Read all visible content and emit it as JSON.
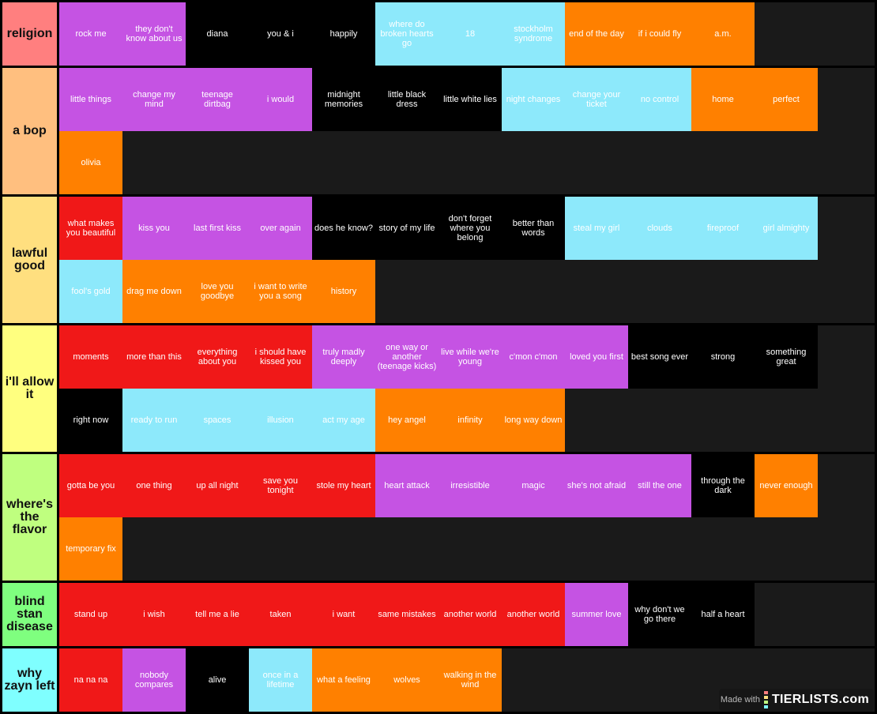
{
  "colors": {
    "red": "#f01818",
    "purple": "#c553e3",
    "black": "#000000",
    "cyan": "#8de9fb",
    "orange": "#ff8000"
  },
  "tiers": [
    {
      "label": "religion",
      "color": "#ff7f7f",
      "items": [
        {
          "t": "rock me",
          "c": "purple"
        },
        {
          "t": "they don't know about us",
          "c": "purple"
        },
        {
          "t": "diana",
          "c": "black"
        },
        {
          "t": "you & i",
          "c": "black"
        },
        {
          "t": "happily",
          "c": "black"
        },
        {
          "t": "where do broken hearts go",
          "c": "cyan"
        },
        {
          "t": "18",
          "c": "cyan"
        },
        {
          "t": "stockholm syndrome",
          "c": "cyan"
        },
        {
          "t": "end of the day",
          "c": "orange"
        },
        {
          "t": "if i could fly",
          "c": "orange"
        },
        {
          "t": "a.m.",
          "c": "orange"
        }
      ]
    },
    {
      "label": "a bop",
      "color": "#ffbf7f",
      "items": [
        {
          "t": "little things",
          "c": "purple"
        },
        {
          "t": "change my mind",
          "c": "purple"
        },
        {
          "t": "teenage dirtbag",
          "c": "purple"
        },
        {
          "t": "i would",
          "c": "purple"
        },
        {
          "t": "midnight memories",
          "c": "black"
        },
        {
          "t": "little black dress",
          "c": "black"
        },
        {
          "t": "little white lies",
          "c": "black"
        },
        {
          "t": "night changes",
          "c": "cyan"
        },
        {
          "t": "change your ticket",
          "c": "cyan"
        },
        {
          "t": "no control",
          "c": "cyan"
        },
        {
          "t": "home",
          "c": "orange"
        },
        {
          "t": "perfect",
          "c": "orange"
        },
        {
          "t": "olivia",
          "c": "orange"
        }
      ]
    },
    {
      "label": "lawful good",
      "color": "#ffdf7f",
      "items": [
        {
          "t": "what makes you beautiful",
          "c": "red"
        },
        {
          "t": "kiss you",
          "c": "purple"
        },
        {
          "t": "last first kiss",
          "c": "purple"
        },
        {
          "t": "over again",
          "c": "purple"
        },
        {
          "t": "does he know?",
          "c": "black"
        },
        {
          "t": "story of my life",
          "c": "black"
        },
        {
          "t": "don't forget where you belong",
          "c": "black"
        },
        {
          "t": "better than words",
          "c": "black"
        },
        {
          "t": "steal my girl",
          "c": "cyan"
        },
        {
          "t": "clouds",
          "c": "cyan"
        },
        {
          "t": "fireproof",
          "c": "cyan"
        },
        {
          "t": "girl almighty",
          "c": "cyan"
        },
        {
          "t": "fool's gold",
          "c": "cyan"
        },
        {
          "t": "drag me down",
          "c": "orange"
        },
        {
          "t": "love you goodbye",
          "c": "orange"
        },
        {
          "t": "i want to write you a song",
          "c": "orange"
        },
        {
          "t": "history",
          "c": "orange"
        }
      ]
    },
    {
      "label": "i'll allow it",
      "color": "#ffff7f",
      "items": [
        {
          "t": "moments",
          "c": "red"
        },
        {
          "t": "more than this",
          "c": "red"
        },
        {
          "t": "everything about you",
          "c": "red"
        },
        {
          "t": "i should have kissed you",
          "c": "red"
        },
        {
          "t": "truly madly deeply",
          "c": "purple"
        },
        {
          "t": "one way or another (teenage kicks)",
          "c": "purple"
        },
        {
          "t": "live while we're young",
          "c": "purple"
        },
        {
          "t": "c'mon c'mon",
          "c": "purple"
        },
        {
          "t": "loved you first",
          "c": "purple"
        },
        {
          "t": "best song ever",
          "c": "black"
        },
        {
          "t": "strong",
          "c": "black"
        },
        {
          "t": "something great",
          "c": "black"
        },
        {
          "t": "right now",
          "c": "black"
        },
        {
          "t": "ready to run",
          "c": "cyan"
        },
        {
          "t": "spaces",
          "c": "cyan"
        },
        {
          "t": "illusion",
          "c": "cyan"
        },
        {
          "t": "act my age",
          "c": "cyan"
        },
        {
          "t": "hey angel",
          "c": "orange"
        },
        {
          "t": "infinity",
          "c": "orange"
        },
        {
          "t": "long way down",
          "c": "orange"
        }
      ]
    },
    {
      "label": "where's the flavor",
      "color": "#bfff7f",
      "items": [
        {
          "t": "gotta be you",
          "c": "red"
        },
        {
          "t": "one thing",
          "c": "red"
        },
        {
          "t": "up all night",
          "c": "red"
        },
        {
          "t": "save you tonight",
          "c": "red"
        },
        {
          "t": "stole my heart",
          "c": "red"
        },
        {
          "t": "heart attack",
          "c": "purple"
        },
        {
          "t": "irresistible",
          "c": "purple"
        },
        {
          "t": "magic",
          "c": "purple"
        },
        {
          "t": "she's not afraid",
          "c": "purple"
        },
        {
          "t": "still the one",
          "c": "purple"
        },
        {
          "t": "through the dark",
          "c": "black"
        },
        {
          "t": "never enough",
          "c": "orange"
        },
        {
          "t": "temporary fix",
          "c": "orange"
        }
      ]
    },
    {
      "label": "blind stan disease",
      "color": "#7fff7f",
      "items": [
        {
          "t": "stand up",
          "c": "red"
        },
        {
          "t": "i wish",
          "c": "red"
        },
        {
          "t": "tell me a lie",
          "c": "red"
        },
        {
          "t": "taken",
          "c": "red"
        },
        {
          "t": "i want",
          "c": "red"
        },
        {
          "t": "same mistakes",
          "c": "red"
        },
        {
          "t": "another world",
          "c": "red"
        },
        {
          "t": "another world",
          "c": "red"
        },
        {
          "t": "summer love",
          "c": "purple"
        },
        {
          "t": "why don't we go there",
          "c": "black"
        },
        {
          "t": "half a heart",
          "c": "black"
        }
      ]
    },
    {
      "label": "why zayn left",
      "color": "#7fffff",
      "items": [
        {
          "t": "na na na",
          "c": "red"
        },
        {
          "t": "nobody compares",
          "c": "purple"
        },
        {
          "t": "alive",
          "c": "black"
        },
        {
          "t": "once in a lifetime",
          "c": "cyan"
        },
        {
          "t": "what a feeling",
          "c": "orange"
        },
        {
          "t": "wolves",
          "c": "orange"
        },
        {
          "t": "walking in the wind",
          "c": "orange"
        }
      ]
    }
  ],
  "watermark": {
    "made_with": "Made with",
    "brand": "TIERLISTS.com"
  }
}
